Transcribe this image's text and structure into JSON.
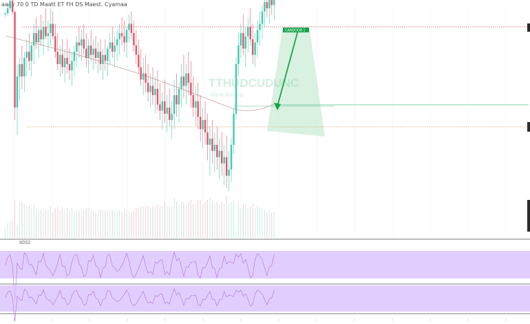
{
  "header": {
    "title": "aaay 70 0 TD Maatt ET FH DS Maest.   Cyamaa"
  },
  "watermark": {
    "title": "TTHUDCUDUNC",
    "subtitle": "Maxk Bieatus"
  },
  "annotation": {
    "target_label": "CANDOOB 1"
  },
  "oscillator": {
    "label": "II0S2"
  },
  "colors": {
    "bull": "#3fc9b0",
    "bear": "#e0566b",
    "arrow": "#16a34a",
    "target_fill": "#b9e6c9",
    "resistance": "#c95050",
    "support": "#d4a06a",
    "mid_line": "#5fbf8f",
    "ma_line": "#c8a29a",
    "osc_band": "#d9c2ff",
    "osc_line": "#b06dd8"
  },
  "chart_data": {
    "type": "candlestick",
    "candles": [
      {
        "o": 10,
        "h": 14,
        "l": 6,
        "c": 12
      },
      {
        "o": 12,
        "h": 28,
        "l": 8,
        "c": 20
      },
      {
        "o": 20,
        "h": 40,
        "l": 16,
        "c": 32
      },
      {
        "o": 32,
        "h": 36,
        "l": 10,
        "c": 14
      },
      {
        "o": 14,
        "h": 16,
        "l": -160,
        "c": -140
      },
      {
        "o": -140,
        "h": -70,
        "l": -185,
        "c": -90
      },
      {
        "o": -90,
        "h": -60,
        "l": -130,
        "c": -70
      },
      {
        "o": -70,
        "h": -40,
        "l": -110,
        "c": -90
      },
      {
        "o": -90,
        "h": -50,
        "l": -115,
        "c": -60
      },
      {
        "o": -60,
        "h": -30,
        "l": -90,
        "c": -50
      },
      {
        "o": -50,
        "h": -20,
        "l": -80,
        "c": -65
      },
      {
        "o": -65,
        "h": -35,
        "l": -90,
        "c": -40
      },
      {
        "o": -40,
        "h": -5,
        "l": -70,
        "c": -20
      },
      {
        "o": -20,
        "h": 5,
        "l": -45,
        "c": -35
      },
      {
        "o": -35,
        "h": -10,
        "l": -60,
        "c": -15
      },
      {
        "o": -15,
        "h": 10,
        "l": -40,
        "c": -30
      },
      {
        "o": -30,
        "h": 0,
        "l": -55,
        "c": -10
      },
      {
        "o": -10,
        "h": 20,
        "l": -30,
        "c": -25
      },
      {
        "o": -25,
        "h": 0,
        "l": -50,
        "c": -20
      },
      {
        "o": -20,
        "h": 20,
        "l": -40,
        "c": -5
      },
      {
        "o": -5,
        "h": 15,
        "l": -30,
        "c": -25
      },
      {
        "o": -25,
        "h": -5,
        "l": -60,
        "c": -50
      },
      {
        "o": -50,
        "h": -20,
        "l": -80,
        "c": -70
      },
      {
        "o": -70,
        "h": -40,
        "l": -90,
        "c": -55
      },
      {
        "o": -55,
        "h": -30,
        "l": -85,
        "c": -75
      },
      {
        "o": -75,
        "h": -45,
        "l": -100,
        "c": -60
      },
      {
        "o": -60,
        "h": -30,
        "l": -85,
        "c": -70
      },
      {
        "o": -70,
        "h": -45,
        "l": -95,
        "c": -80
      },
      {
        "o": -80,
        "h": -50,
        "l": -105,
        "c": -65
      },
      {
        "o": -65,
        "h": -40,
        "l": -90,
        "c": -50
      },
      {
        "o": -50,
        "h": -25,
        "l": -75,
        "c": -35
      },
      {
        "o": -35,
        "h": -10,
        "l": -60,
        "c": -40
      },
      {
        "o": -40,
        "h": -15,
        "l": -65,
        "c": -30
      },
      {
        "o": -30,
        "h": -5,
        "l": -55,
        "c": -45
      },
      {
        "o": -45,
        "h": -20,
        "l": -75,
        "c": -60
      },
      {
        "o": -60,
        "h": -30,
        "l": -85,
        "c": -40
      },
      {
        "o": -40,
        "h": -15,
        "l": -65,
        "c": -55
      },
      {
        "o": -55,
        "h": -30,
        "l": -80,
        "c": -45
      },
      {
        "o": -45,
        "h": -25,
        "l": -70,
        "c": -60
      },
      {
        "o": -60,
        "h": -35,
        "l": -85,
        "c": -50
      },
      {
        "o": -50,
        "h": -30,
        "l": -80,
        "c": -70
      },
      {
        "o": -70,
        "h": -45,
        "l": -95,
        "c": -55
      },
      {
        "o": -55,
        "h": -30,
        "l": -80,
        "c": -65
      },
      {
        "o": -65,
        "h": -40,
        "l": -90,
        "c": -45
      },
      {
        "o": -45,
        "h": -20,
        "l": -70,
        "c": -35
      },
      {
        "o": -35,
        "h": -10,
        "l": -60,
        "c": -50
      },
      {
        "o": -50,
        "h": -25,
        "l": -75,
        "c": -40
      },
      {
        "o": -40,
        "h": -15,
        "l": -65,
        "c": -30
      },
      {
        "o": -30,
        "h": -5,
        "l": -55,
        "c": -20
      },
      {
        "o": -20,
        "h": 5,
        "l": -40,
        "c": -25
      },
      {
        "o": -25,
        "h": 0,
        "l": -50,
        "c": -35
      },
      {
        "o": -35,
        "h": -10,
        "l": -60,
        "c": -15
      },
      {
        "o": -15,
        "h": 10,
        "l": -35,
        "c": -5
      },
      {
        "o": -5,
        "h": 15,
        "l": -30,
        "c": -20
      },
      {
        "o": -20,
        "h": 0,
        "l": -50,
        "c": -40
      },
      {
        "o": -40,
        "h": -15,
        "l": -70,
        "c": -55
      },
      {
        "o": -55,
        "h": -30,
        "l": -85,
        "c": -75
      },
      {
        "o": -75,
        "h": -45,
        "l": -105,
        "c": -95
      },
      {
        "o": -95,
        "h": -60,
        "l": -120,
        "c": -85
      },
      {
        "o": -85,
        "h": -55,
        "l": -115,
        "c": -100
      },
      {
        "o": -100,
        "h": -70,
        "l": -130,
        "c": -115
      },
      {
        "o": -115,
        "h": -85,
        "l": -140,
        "c": -105
      },
      {
        "o": -105,
        "h": -75,
        "l": -135,
        "c": -120
      },
      {
        "o": -120,
        "h": -90,
        "l": -150,
        "c": -110
      },
      {
        "o": -110,
        "h": -80,
        "l": -145,
        "c": -135
      },
      {
        "o": -135,
        "h": -100,
        "l": -160,
        "c": -145
      },
      {
        "o": -145,
        "h": -115,
        "l": -175,
        "c": -130
      },
      {
        "o": -130,
        "h": -95,
        "l": -165,
        "c": -150
      },
      {
        "o": -150,
        "h": -120,
        "l": -180,
        "c": -140
      },
      {
        "o": -140,
        "h": -110,
        "l": -170,
        "c": -160
      },
      {
        "o": -160,
        "h": -130,
        "l": -190,
        "c": -150
      },
      {
        "o": -150,
        "h": -95,
        "l": -175,
        "c": -120
      },
      {
        "o": -120,
        "h": -85,
        "l": -155,
        "c": -135
      },
      {
        "o": -135,
        "h": -100,
        "l": -165,
        "c": -110
      },
      {
        "o": -110,
        "h": -70,
        "l": -140,
        "c": -90
      },
      {
        "o": -90,
        "h": -55,
        "l": -125,
        "c": -105
      },
      {
        "o": -105,
        "h": -70,
        "l": -135,
        "c": -85
      },
      {
        "o": -85,
        "h": -50,
        "l": -120,
        "c": -100
      },
      {
        "o": -100,
        "h": -65,
        "l": -140,
        "c": -120
      },
      {
        "o": -120,
        "h": -90,
        "l": -155,
        "c": -140
      },
      {
        "o": -140,
        "h": -105,
        "l": -170,
        "c": -130
      },
      {
        "o": -130,
        "h": -100,
        "l": -175,
        "c": -155
      },
      {
        "o": -155,
        "h": -120,
        "l": -195,
        "c": -175
      },
      {
        "o": -175,
        "h": -140,
        "l": -205,
        "c": -160
      },
      {
        "o": -160,
        "h": -130,
        "l": -200,
        "c": -180
      },
      {
        "o": -180,
        "h": -150,
        "l": -225,
        "c": -200
      },
      {
        "o": -200,
        "h": -170,
        "l": -250,
        "c": -190
      },
      {
        "o": -190,
        "h": -160,
        "l": -230,
        "c": -210
      },
      {
        "o": -210,
        "h": -180,
        "l": -245,
        "c": -200
      },
      {
        "o": -200,
        "h": -170,
        "l": -240,
        "c": -220
      },
      {
        "o": -220,
        "h": -190,
        "l": -255,
        "c": -210
      },
      {
        "o": -210,
        "h": -180,
        "l": -250,
        "c": -230
      },
      {
        "o": -230,
        "h": -200,
        "l": -265,
        "c": -220
      },
      {
        "o": -220,
        "h": -185,
        "l": -270,
        "c": -250
      },
      {
        "o": -250,
        "h": -210,
        "l": -275,
        "c": -240
      },
      {
        "o": -240,
        "h": -190,
        "l": -260,
        "c": -200
      },
      {
        "o": -200,
        "h": -140,
        "l": -215,
        "c": -150
      },
      {
        "o": -150,
        "h": -60,
        "l": -160,
        "c": -70
      },
      {
        "o": -70,
        "h": -20,
        "l": -90,
        "c": -40
      },
      {
        "o": -40,
        "h": -5,
        "l": -60,
        "c": -20
      },
      {
        "o": -20,
        "h": 10,
        "l": -55,
        "c": -45
      },
      {
        "o": -45,
        "h": -10,
        "l": -75,
        "c": -25
      },
      {
        "o": -25,
        "h": 5,
        "l": -50,
        "c": -10
      },
      {
        "o": -10,
        "h": 20,
        "l": -40,
        "c": -30
      },
      {
        "o": -30,
        "h": -5,
        "l": -70,
        "c": -55
      },
      {
        "o": -55,
        "h": -20,
        "l": -75,
        "c": -35
      },
      {
        "o": -35,
        "h": 0,
        "l": -60,
        "c": -15
      },
      {
        "o": -15,
        "h": 15,
        "l": -40,
        "c": -5
      },
      {
        "o": -5,
        "h": 25,
        "l": -30,
        "c": 15
      },
      {
        "o": 15,
        "h": 40,
        "l": -10,
        "c": 30
      },
      {
        "o": 30,
        "h": 50,
        "l": 5,
        "c": 20
      },
      {
        "o": 20,
        "h": 45,
        "l": -5,
        "c": 35
      },
      {
        "o": 35,
        "h": 55,
        "l": 10,
        "c": 25
      },
      {
        "o": 25,
        "h": 45,
        "l": 0,
        "c": 40
      }
    ]
  }
}
